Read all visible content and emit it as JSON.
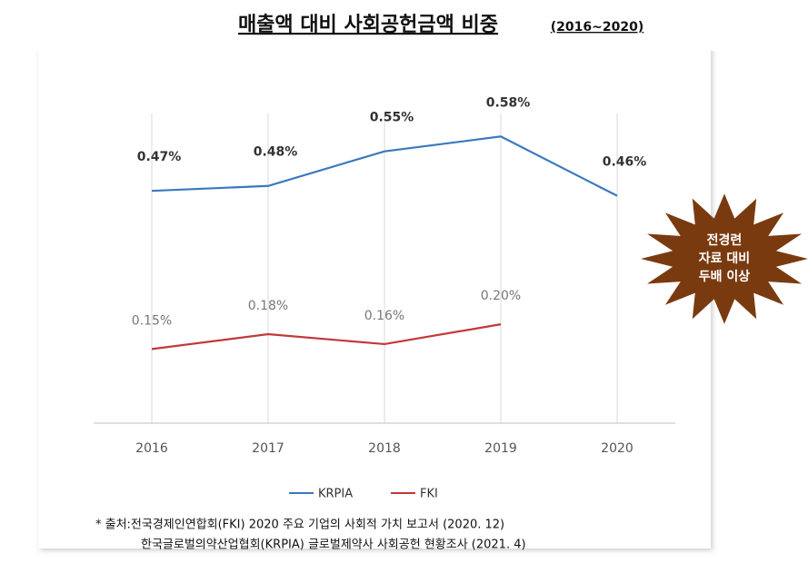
{
  "chart_data": {
    "type": "line",
    "title": "매출액 대비 사회공헌금액 비중",
    "subtitle": "(2016~2020)",
    "categories": [
      "2016",
      "2017",
      "2018",
      "2019",
      "2020"
    ],
    "series": [
      {
        "name": "KRPIA",
        "color": "#3a78bf",
        "values": [
          0.47,
          0.48,
          0.55,
          0.58,
          0.46
        ],
        "value_labels": [
          "0.47%",
          "0.48%",
          "0.55%",
          "0.58%",
          "0.46%"
        ]
      },
      {
        "name": "FKI",
        "color": "#c0393b",
        "values": [
          0.15,
          0.18,
          0.16,
          0.2,
          null
        ],
        "value_labels": [
          "0.15%",
          "0.18%",
          "0.16%",
          "0.20%",
          null
        ]
      }
    ],
    "ylim": [
      0,
      0.7
    ],
    "annotation": [
      "전경련",
      "자료 대비",
      "두배 이상"
    ],
    "notes": [
      "* 출처:전국경제인연합회(FKI) 2020 주요 기업의 사회적 가치 보고서 (2020. 12)",
      "한국글로벌의약산업협회(KRPIA) 글로벌제약사 사회공헌 현황조사 (2021. 4)"
    ]
  }
}
